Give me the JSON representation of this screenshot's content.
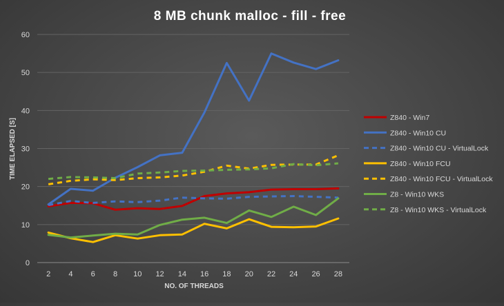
{
  "chart_data": {
    "type": "line",
    "title": "8 MB chunk malloc - fill - free",
    "xlabel": "NO. OF THREADS",
    "ylabel": "TIME ELAPSED [S]",
    "x": [
      2,
      4,
      6,
      8,
      10,
      12,
      14,
      16,
      18,
      20,
      22,
      24,
      26,
      28
    ],
    "ylim": [
      0,
      60
    ],
    "yticks": [
      0,
      10,
      20,
      30,
      40,
      50,
      60
    ],
    "grid": true,
    "legend_position": "right",
    "series": [
      {
        "name": "Z840 - Win7",
        "color": "#c00000",
        "style": "solid",
        "values": [
          14.8,
          15.7,
          15.6,
          13.9,
          14.3,
          14.1,
          14.9,
          17.5,
          18.2,
          18.5,
          19.2,
          19.3,
          19.3,
          19.5
        ]
      },
      {
        "name": "Z840 - Win10 CU",
        "color": "#4472c4",
        "style": "solid",
        "values": [
          15.3,
          19.4,
          18.9,
          22.3,
          25.1,
          28.2,
          28.9,
          39.5,
          52.5,
          42.6,
          55.0,
          52.6,
          50.9,
          53.2
        ]
      },
      {
        "name": "Z840 - Win10 CU - VirtualLock",
        "color": "#4472c4",
        "style": "dashed",
        "values": [
          15.1,
          16.2,
          15.7,
          16.1,
          15.9,
          16.3,
          17.1,
          16.9,
          16.8,
          17.3,
          17.4,
          17.5,
          17.3,
          17.1
        ]
      },
      {
        "name": "Z840 - Win10 FCU",
        "color": "#ffc000",
        "style": "solid",
        "values": [
          7.9,
          6.4,
          5.4,
          7.2,
          6.3,
          7.2,
          7.4,
          10.2,
          9.0,
          11.4,
          9.4,
          9.3,
          9.5,
          11.6
        ]
      },
      {
        "name": "Z840 - Win10 FCU - VirtualLock",
        "color": "#ffc000",
        "style": "dashed",
        "values": [
          20.6,
          21.5,
          21.9,
          21.7,
          22.2,
          22.4,
          22.9,
          23.9,
          25.5,
          24.7,
          25.7,
          25.8,
          25.8,
          28.2
        ]
      },
      {
        "name": "Z8 - Win10 WKS",
        "color": "#70ad47",
        "style": "solid",
        "values": [
          7.3,
          6.6,
          7.1,
          7.6,
          7.4,
          9.9,
          11.3,
          11.8,
          10.4,
          13.7,
          12.0,
          14.7,
          12.5,
          16.9
        ]
      },
      {
        "name": "Z8 - Win10 WKS - VirtualLock",
        "color": "#70ad47",
        "style": "dashed",
        "values": [
          22.0,
          22.5,
          22.4,
          22.2,
          23.4,
          23.7,
          24.1,
          24.2,
          24.4,
          24.5,
          24.8,
          25.9,
          25.6,
          26.1
        ]
      }
    ]
  }
}
